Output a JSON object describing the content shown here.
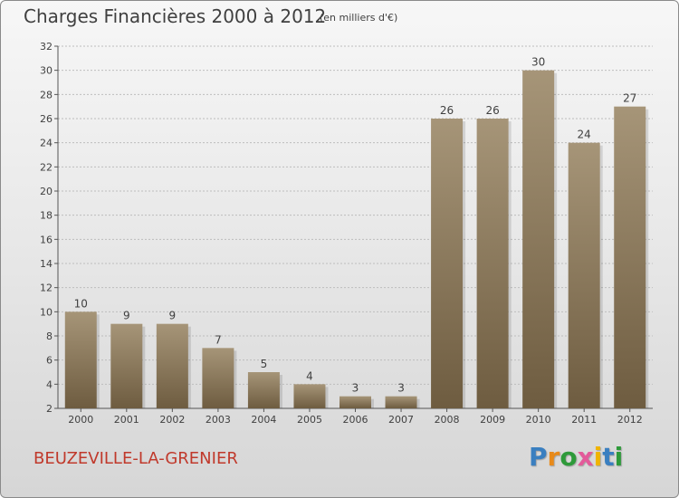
{
  "header": {
    "title": "Charges Financières 2000 à 2012",
    "subtitle": "(en milliers d'€)"
  },
  "footer": {
    "commune": "BEUZEVILLE-LA-GRENIER",
    "logo_letters": [
      {
        "char": "P",
        "color": "#3a7fc0"
      },
      {
        "char": "r",
        "color": "#e88a1a"
      },
      {
        "char": "o",
        "color": "#2e9a3a"
      },
      {
        "char": "x",
        "color": "#e35a9a"
      },
      {
        "char": "i",
        "color": "#f0b400"
      },
      {
        "char": "t",
        "color": "#3a7fc0"
      },
      {
        "char": "i",
        "color": "#2e9a3a"
      }
    ]
  },
  "colors": {
    "bar_top": "#a69578",
    "bar_bottom": "#6e5c40",
    "grid": "#bdbdbd",
    "axis": "#555555",
    "text": "#404040"
  },
  "chart_data": {
    "type": "bar",
    "categories": [
      "2000",
      "2001",
      "2002",
      "2003",
      "2004",
      "2005",
      "2006",
      "2007",
      "2008",
      "2009",
      "2010",
      "2011",
      "2012"
    ],
    "values": [
      10,
      9,
      9,
      7,
      5,
      4,
      3,
      3,
      26,
      26,
      30,
      24,
      27
    ],
    "ylim": [
      2,
      32
    ],
    "yticks": [
      2,
      4,
      6,
      8,
      10,
      12,
      14,
      16,
      18,
      20,
      22,
      24,
      26,
      28,
      30,
      32
    ],
    "grid": true
  }
}
